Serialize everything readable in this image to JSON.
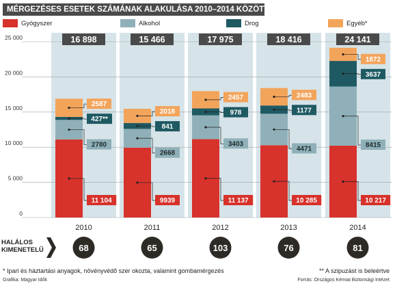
{
  "title": "MÉRGEZÉSES ESETEK SZÁMÁNAK ALAKULÁSA 2010–2014 KÖZÖTT",
  "legend": [
    {
      "label": "Gyógyszer",
      "color": "#d7322b"
    },
    {
      "label": "Alkohol",
      "color": "#8fb0b8"
    },
    {
      "label": "Drog",
      "color": "#1f5a63"
    },
    {
      "label": "Egyéb*",
      "color": "#f3a45b"
    }
  ],
  "colors": {
    "gyogyszer": "#d7322b",
    "alkohol": "#8fb0b8",
    "drog": "#1f5a63",
    "egyeb": "#f3a45b",
    "column_bg": "#d6e3e8",
    "total_badge": "#4a4a4a",
    "fatal_circle": "#2e2a26"
  },
  "chart_data": {
    "type": "bar",
    "stacked": true,
    "categories": [
      "2010",
      "2011",
      "2012",
      "2013",
      "2014"
    ],
    "series": [
      {
        "name": "Gyógyszer",
        "values": [
          11104,
          9939,
          11137,
          10285,
          10217
        ],
        "labels": [
          "11 104",
          "9939",
          "11 137",
          "10 285",
          "10 217"
        ]
      },
      {
        "name": "Alkohol",
        "values": [
          2780,
          2668,
          3403,
          4471,
          8415
        ],
        "labels": [
          "2780",
          "2668",
          "3403",
          "4471",
          "8415"
        ]
      },
      {
        "name": "Drog",
        "values": [
          427,
          841,
          978,
          1177,
          3637
        ],
        "labels": [
          "427**",
          "841",
          "978",
          "1177",
          "3637"
        ]
      },
      {
        "name": "Egyéb*",
        "values": [
          2587,
          2018,
          2457,
          2483,
          1872
        ],
        "labels": [
          "2587",
          "2018",
          "2457",
          "2483",
          "1872"
        ]
      }
    ],
    "totals": [
      "16 898",
      "15 466",
      "17 975",
      "18 416",
      "24 141"
    ],
    "y_ticks": [
      "0",
      "5 000",
      "10 000",
      "15 000",
      "20 000",
      "25 000"
    ],
    "ylim": [
      0,
      25000
    ],
    "grid": true,
    "legend_position": "top"
  },
  "fatal": {
    "label_line1": "HALÁLOS",
    "label_line2": "KIMENETELŰ",
    "values": [
      "68",
      "65",
      "103",
      "76",
      "81"
    ]
  },
  "footnotes": {
    "left": "* Ipari és háztartási anyagok, növényvédő szer okozta, valamint gombamérgezés",
    "right": "** A szipuzást is beleértve"
  },
  "credits": {
    "left": "Grafika: Magyar Idők",
    "right": "Forrás: Országos Kémiai Biztonsági Intézet"
  }
}
